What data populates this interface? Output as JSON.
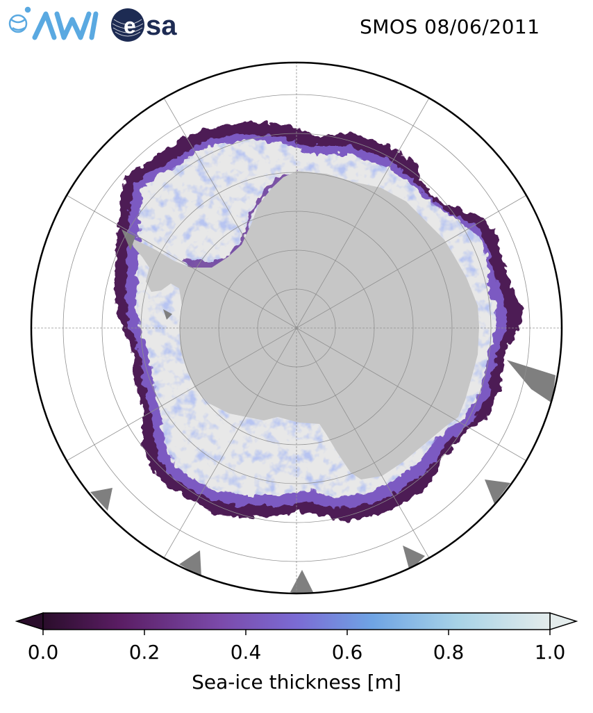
{
  "header": {
    "logos": [
      {
        "name": "awi-logo",
        "text": "AWI",
        "color": "#5aa9e1"
      },
      {
        "name": "esa-logo",
        "text": "esa",
        "color": "#1d2b53"
      }
    ],
    "title": "SMOS 08/06/2011"
  },
  "map": {
    "projection": "south-polar-stereographic",
    "colors": {
      "land": "#c6c6c6",
      "ocean": "#ffffff",
      "no_data": "#7f7f7f",
      "thick_ice": "#e8e8e8",
      "grid": "#909090",
      "border": "#000000"
    }
  },
  "colorbar": {
    "label": "Sea-ice thickness [m]",
    "ticks": [
      "0.0",
      "0.2",
      "0.4",
      "0.6",
      "0.8",
      "1.0"
    ],
    "tick_values": [
      0.0,
      0.2,
      0.4,
      0.6,
      0.8,
      1.0
    ],
    "range": [
      0.0,
      1.0
    ],
    "extend": "both",
    "colormap_stops": [
      {
        "value": 0.0,
        "color": "#2a0d2b"
      },
      {
        "value": 0.15,
        "color": "#5a1d63"
      },
      {
        "value": 0.35,
        "color": "#7b4aaa"
      },
      {
        "value": 0.5,
        "color": "#7b6bd4"
      },
      {
        "value": 0.65,
        "color": "#6fa4e4"
      },
      {
        "value": 0.82,
        "color": "#a8d3e6"
      },
      {
        "value": 1.0,
        "color": "#e4ecec"
      }
    ]
  }
}
